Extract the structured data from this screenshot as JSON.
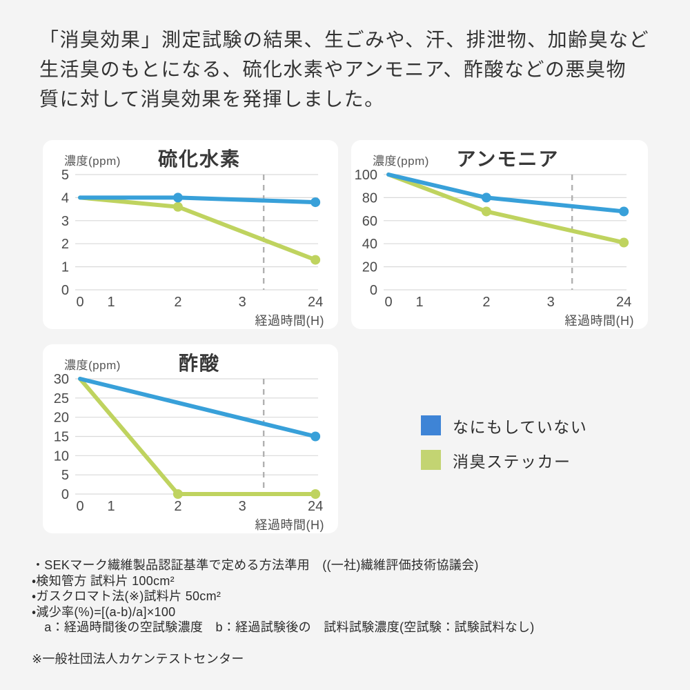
{
  "page": {
    "background": "#f4f4f4"
  },
  "headline": {
    "lines": [
      "「消臭効果」測定試験の結果、生ごみや、汗、排泄物、加齢臭など",
      "生活臭のもとになる、硫化水素やアンモニア、酢酸などの悪臭物",
      "質に対して消臭効果を発揮しました。"
    ]
  },
  "legend": {
    "items": [
      {
        "label": "なにもしていない",
        "color": "#3e84d6"
      },
      {
        "label": "消臭ステッカー",
        "color": "#c3d472"
      }
    ]
  },
  "footer": {
    "notes": [
      "・SEKマーク繊維製品認証基準で定める方法準用　((一社)繊維評価技術協議会)",
      "・検知管方 試料片 100cm²",
      "・ガスクロマト法(※)試料片 50cm²",
      "・減少率(%)=[(a-b)/a]×100",
      "　a：経過時間後の空試験濃度　b：経過試験後の　試料試験濃度(空試験：試験試料なし)"
    ],
    "source": "※一般社団法人カケンテストセンター"
  },
  "chart_data": [
    {
      "type": "line",
      "title": "硫化水素",
      "ylabel": "濃度(ppm)",
      "xlabel": "経過時間(H)",
      "x_ticks": [
        "0",
        "1",
        "2",
        "3",
        "24"
      ],
      "y_ticks": [
        5,
        4,
        3,
        2,
        1,
        0
      ],
      "ylim": [
        0,
        5
      ],
      "grid": "horizontal",
      "dashed_guide": true,
      "legend_position": "shared-right",
      "series": [
        {
          "name": "なにもしていない",
          "color": "#38a0d9",
          "x": [
            0,
            2,
            24
          ],
          "values": [
            4,
            4,
            3.8
          ]
        },
        {
          "name": "消臭ステッカー",
          "color": "#bfd35f",
          "x": [
            0,
            2,
            24
          ],
          "values": [
            4,
            3.6,
            1.3
          ]
        }
      ]
    },
    {
      "type": "line",
      "title": "アンモニア",
      "ylabel": "濃度(ppm)",
      "xlabel": "経過時間(H)",
      "x_ticks": [
        "0",
        "1",
        "2",
        "3",
        "24"
      ],
      "y_ticks": [
        100,
        80,
        60,
        40,
        20,
        0
      ],
      "ylim": [
        0,
        100
      ],
      "grid": "horizontal",
      "dashed_guide": true,
      "legend_position": "shared-right",
      "series": [
        {
          "name": "なにもしていない",
          "color": "#38a0d9",
          "x": [
            0,
            2,
            24
          ],
          "values": [
            100,
            80,
            68
          ]
        },
        {
          "name": "消臭ステッカー",
          "color": "#bfd35f",
          "x": [
            0,
            2,
            24
          ],
          "values": [
            100,
            68,
            41
          ]
        }
      ]
    },
    {
      "type": "line",
      "title": "酢酸",
      "ylabel": "濃度(ppm)",
      "xlabel": "経過時間(H)",
      "x_ticks": [
        "0",
        "1",
        "2",
        "3",
        "24"
      ],
      "y_ticks": [
        30,
        25,
        20,
        15,
        10,
        5,
        0
      ],
      "ylim": [
        0,
        30
      ],
      "grid": "horizontal",
      "dashed_guide": true,
      "legend_position": "shared-right",
      "series": [
        {
          "name": "なにもしていない",
          "color": "#38a0d9",
          "x": [
            0,
            24
          ],
          "values": [
            30,
            15
          ]
        },
        {
          "name": "消臭ステッカー",
          "color": "#bfd35f",
          "x": [
            0,
            2,
            24
          ],
          "values": [
            30,
            0,
            0
          ]
        }
      ]
    }
  ]
}
